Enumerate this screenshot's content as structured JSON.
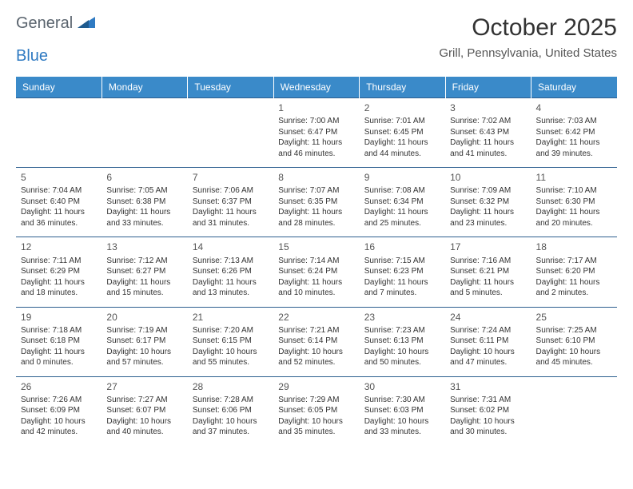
{
  "logo": {
    "text1": "General",
    "text2": "Blue"
  },
  "title": "October 2025",
  "location": "Grill, Pennsylvania, United States",
  "calendar": {
    "header_bg": "#3a8ac9",
    "header_fg": "#ffffff",
    "border_color": "#2d5f8f",
    "day_fontsize": 12,
    "cell_fontsize": 10,
    "days": [
      "Sunday",
      "Monday",
      "Tuesday",
      "Wednesday",
      "Thursday",
      "Friday",
      "Saturday"
    ],
    "weeks": [
      [
        {
          "n": "",
          "sunrise": "",
          "sunset": "",
          "daylight": ""
        },
        {
          "n": "",
          "sunrise": "",
          "sunset": "",
          "daylight": ""
        },
        {
          "n": "",
          "sunrise": "",
          "sunset": "",
          "daylight": ""
        },
        {
          "n": "1",
          "sunrise": "Sunrise: 7:00 AM",
          "sunset": "Sunset: 6:47 PM",
          "daylight": "Daylight: 11 hours and 46 minutes."
        },
        {
          "n": "2",
          "sunrise": "Sunrise: 7:01 AM",
          "sunset": "Sunset: 6:45 PM",
          "daylight": "Daylight: 11 hours and 44 minutes."
        },
        {
          "n": "3",
          "sunrise": "Sunrise: 7:02 AM",
          "sunset": "Sunset: 6:43 PM",
          "daylight": "Daylight: 11 hours and 41 minutes."
        },
        {
          "n": "4",
          "sunrise": "Sunrise: 7:03 AM",
          "sunset": "Sunset: 6:42 PM",
          "daylight": "Daylight: 11 hours and 39 minutes."
        }
      ],
      [
        {
          "n": "5",
          "sunrise": "Sunrise: 7:04 AM",
          "sunset": "Sunset: 6:40 PM",
          "daylight": "Daylight: 11 hours and 36 minutes."
        },
        {
          "n": "6",
          "sunrise": "Sunrise: 7:05 AM",
          "sunset": "Sunset: 6:38 PM",
          "daylight": "Daylight: 11 hours and 33 minutes."
        },
        {
          "n": "7",
          "sunrise": "Sunrise: 7:06 AM",
          "sunset": "Sunset: 6:37 PM",
          "daylight": "Daylight: 11 hours and 31 minutes."
        },
        {
          "n": "8",
          "sunrise": "Sunrise: 7:07 AM",
          "sunset": "Sunset: 6:35 PM",
          "daylight": "Daylight: 11 hours and 28 minutes."
        },
        {
          "n": "9",
          "sunrise": "Sunrise: 7:08 AM",
          "sunset": "Sunset: 6:34 PM",
          "daylight": "Daylight: 11 hours and 25 minutes."
        },
        {
          "n": "10",
          "sunrise": "Sunrise: 7:09 AM",
          "sunset": "Sunset: 6:32 PM",
          "daylight": "Daylight: 11 hours and 23 minutes."
        },
        {
          "n": "11",
          "sunrise": "Sunrise: 7:10 AM",
          "sunset": "Sunset: 6:30 PM",
          "daylight": "Daylight: 11 hours and 20 minutes."
        }
      ],
      [
        {
          "n": "12",
          "sunrise": "Sunrise: 7:11 AM",
          "sunset": "Sunset: 6:29 PM",
          "daylight": "Daylight: 11 hours and 18 minutes."
        },
        {
          "n": "13",
          "sunrise": "Sunrise: 7:12 AM",
          "sunset": "Sunset: 6:27 PM",
          "daylight": "Daylight: 11 hours and 15 minutes."
        },
        {
          "n": "14",
          "sunrise": "Sunrise: 7:13 AM",
          "sunset": "Sunset: 6:26 PM",
          "daylight": "Daylight: 11 hours and 13 minutes."
        },
        {
          "n": "15",
          "sunrise": "Sunrise: 7:14 AM",
          "sunset": "Sunset: 6:24 PM",
          "daylight": "Daylight: 11 hours and 10 minutes."
        },
        {
          "n": "16",
          "sunrise": "Sunrise: 7:15 AM",
          "sunset": "Sunset: 6:23 PM",
          "daylight": "Daylight: 11 hours and 7 minutes."
        },
        {
          "n": "17",
          "sunrise": "Sunrise: 7:16 AM",
          "sunset": "Sunset: 6:21 PM",
          "daylight": "Daylight: 11 hours and 5 minutes."
        },
        {
          "n": "18",
          "sunrise": "Sunrise: 7:17 AM",
          "sunset": "Sunset: 6:20 PM",
          "daylight": "Daylight: 11 hours and 2 minutes."
        }
      ],
      [
        {
          "n": "19",
          "sunrise": "Sunrise: 7:18 AM",
          "sunset": "Sunset: 6:18 PM",
          "daylight": "Daylight: 11 hours and 0 minutes."
        },
        {
          "n": "20",
          "sunrise": "Sunrise: 7:19 AM",
          "sunset": "Sunset: 6:17 PM",
          "daylight": "Daylight: 10 hours and 57 minutes."
        },
        {
          "n": "21",
          "sunrise": "Sunrise: 7:20 AM",
          "sunset": "Sunset: 6:15 PM",
          "daylight": "Daylight: 10 hours and 55 minutes."
        },
        {
          "n": "22",
          "sunrise": "Sunrise: 7:21 AM",
          "sunset": "Sunset: 6:14 PM",
          "daylight": "Daylight: 10 hours and 52 minutes."
        },
        {
          "n": "23",
          "sunrise": "Sunrise: 7:23 AM",
          "sunset": "Sunset: 6:13 PM",
          "daylight": "Daylight: 10 hours and 50 minutes."
        },
        {
          "n": "24",
          "sunrise": "Sunrise: 7:24 AM",
          "sunset": "Sunset: 6:11 PM",
          "daylight": "Daylight: 10 hours and 47 minutes."
        },
        {
          "n": "25",
          "sunrise": "Sunrise: 7:25 AM",
          "sunset": "Sunset: 6:10 PM",
          "daylight": "Daylight: 10 hours and 45 minutes."
        }
      ],
      [
        {
          "n": "26",
          "sunrise": "Sunrise: 7:26 AM",
          "sunset": "Sunset: 6:09 PM",
          "daylight": "Daylight: 10 hours and 42 minutes."
        },
        {
          "n": "27",
          "sunrise": "Sunrise: 7:27 AM",
          "sunset": "Sunset: 6:07 PM",
          "daylight": "Daylight: 10 hours and 40 minutes."
        },
        {
          "n": "28",
          "sunrise": "Sunrise: 7:28 AM",
          "sunset": "Sunset: 6:06 PM",
          "daylight": "Daylight: 10 hours and 37 minutes."
        },
        {
          "n": "29",
          "sunrise": "Sunrise: 7:29 AM",
          "sunset": "Sunset: 6:05 PM",
          "daylight": "Daylight: 10 hours and 35 minutes."
        },
        {
          "n": "30",
          "sunrise": "Sunrise: 7:30 AM",
          "sunset": "Sunset: 6:03 PM",
          "daylight": "Daylight: 10 hours and 33 minutes."
        },
        {
          "n": "31",
          "sunrise": "Sunrise: 7:31 AM",
          "sunset": "Sunset: 6:02 PM",
          "daylight": "Daylight: 10 hours and 30 minutes."
        },
        {
          "n": "",
          "sunrise": "",
          "sunset": "",
          "daylight": ""
        }
      ]
    ]
  }
}
